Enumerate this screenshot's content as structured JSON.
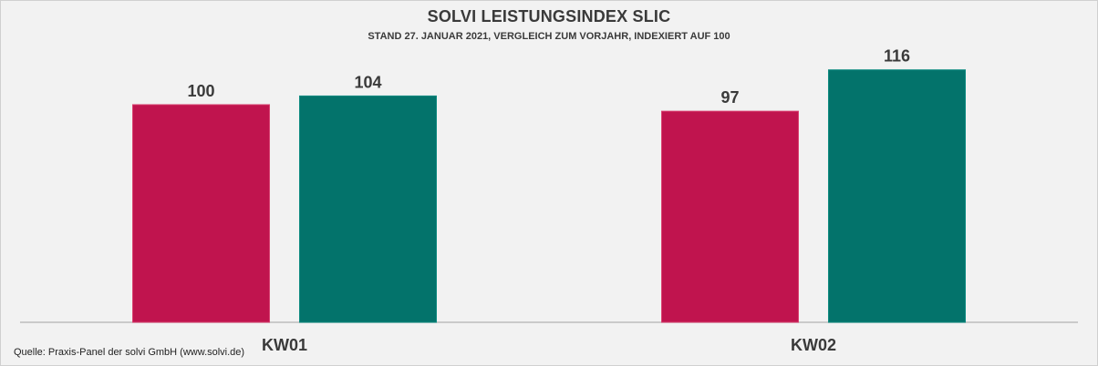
{
  "chart_data": {
    "type": "bar",
    "title": "SOLVI LEISTUNGSINDEX SLIC",
    "subtitle": "STAND 27. JANUAR 2021, VERGLEICH ZUM VORJAHR, INDEXIERT AUF 100",
    "categories": [
      "KW01",
      "KW02"
    ],
    "series": [
      {
        "color": "#c0144e",
        "values": [
          100,
          97
        ]
      },
      {
        "color": "#03736b",
        "values": [
          104,
          116
        ]
      }
    ],
    "ylim": [
      0,
      123
    ],
    "grid": false,
    "legend": "none"
  },
  "source": "Quelle: Praxis-Panel der solvi GmbH (www.solvi.de)"
}
